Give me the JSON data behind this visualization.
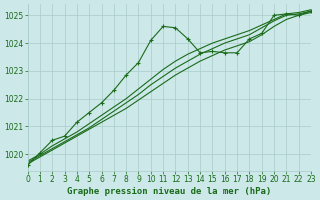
{
  "title": "Graphe pression niveau de la mer (hPa)",
  "background_color": "#cce8e8",
  "grid_color": "#aacccc",
  "line_color": "#1a6b1a",
  "x_min": 0,
  "x_max": 23,
  "y_min": 1019.4,
  "y_max": 1025.4,
  "series_smooth_1": {
    "x": [
      0,
      1,
      2,
      3,
      4,
      5,
      6,
      7,
      8,
      9,
      10,
      11,
      12,
      13,
      14,
      15,
      16,
      17,
      18,
      19,
      20,
      21,
      22,
      23
    ],
    "y": [
      1019.65,
      1019.9,
      1020.15,
      1020.4,
      1020.65,
      1020.9,
      1021.15,
      1021.4,
      1021.65,
      1021.95,
      1022.25,
      1022.55,
      1022.85,
      1023.1,
      1023.35,
      1023.55,
      1023.75,
      1023.9,
      1024.05,
      1024.3,
      1024.6,
      1024.85,
      1025.0,
      1025.1
    ]
  },
  "series_smooth_2": {
    "x": [
      0,
      1,
      2,
      3,
      4,
      5,
      6,
      7,
      8,
      9,
      10,
      11,
      12,
      13,
      14,
      15,
      16,
      17,
      18,
      19,
      20,
      21,
      22,
      23
    ],
    "y": [
      1019.7,
      1019.95,
      1020.2,
      1020.45,
      1020.7,
      1020.95,
      1021.25,
      1021.55,
      1021.85,
      1022.15,
      1022.5,
      1022.8,
      1023.1,
      1023.35,
      1023.6,
      1023.8,
      1024.0,
      1024.15,
      1024.3,
      1024.55,
      1024.8,
      1025.0,
      1025.05,
      1025.15
    ]
  },
  "series_smooth_3": {
    "x": [
      0,
      1,
      2,
      3,
      4,
      5,
      6,
      7,
      8,
      9,
      10,
      11,
      12,
      13,
      14,
      15,
      16,
      17,
      18,
      19,
      20,
      21,
      22,
      23
    ],
    "y": [
      1019.75,
      1020.0,
      1020.3,
      1020.55,
      1020.8,
      1021.1,
      1021.4,
      1021.7,
      1022.0,
      1022.35,
      1022.7,
      1023.05,
      1023.35,
      1023.6,
      1023.8,
      1024.0,
      1024.15,
      1024.3,
      1024.45,
      1024.65,
      1024.85,
      1025.05,
      1025.1,
      1025.2
    ]
  },
  "series_markers": {
    "x": [
      0,
      1,
      2,
      3,
      4,
      5,
      6,
      7,
      8,
      9,
      10,
      11,
      12,
      13,
      14,
      15,
      16,
      17,
      18,
      19,
      20,
      21,
      22,
      23
    ],
    "y": [
      1019.6,
      1020.05,
      1020.5,
      1020.65,
      1021.15,
      1021.5,
      1021.85,
      1022.3,
      1022.85,
      1023.3,
      1024.1,
      1024.6,
      1024.55,
      1024.15,
      1023.65,
      1023.7,
      1023.65,
      1023.65,
      1024.15,
      1024.35,
      1025.0,
      1025.05,
      1025.0,
      1025.15
    ]
  },
  "yticks": [
    1020,
    1021,
    1022,
    1023,
    1024,
    1025
  ],
  "xticks": [
    0,
    1,
    2,
    3,
    4,
    5,
    6,
    7,
    8,
    9,
    10,
    11,
    12,
    13,
    14,
    15,
    16,
    17,
    18,
    19,
    20,
    21,
    22,
    23
  ],
  "title_fontsize": 6.5,
  "tick_fontsize": 5.5
}
